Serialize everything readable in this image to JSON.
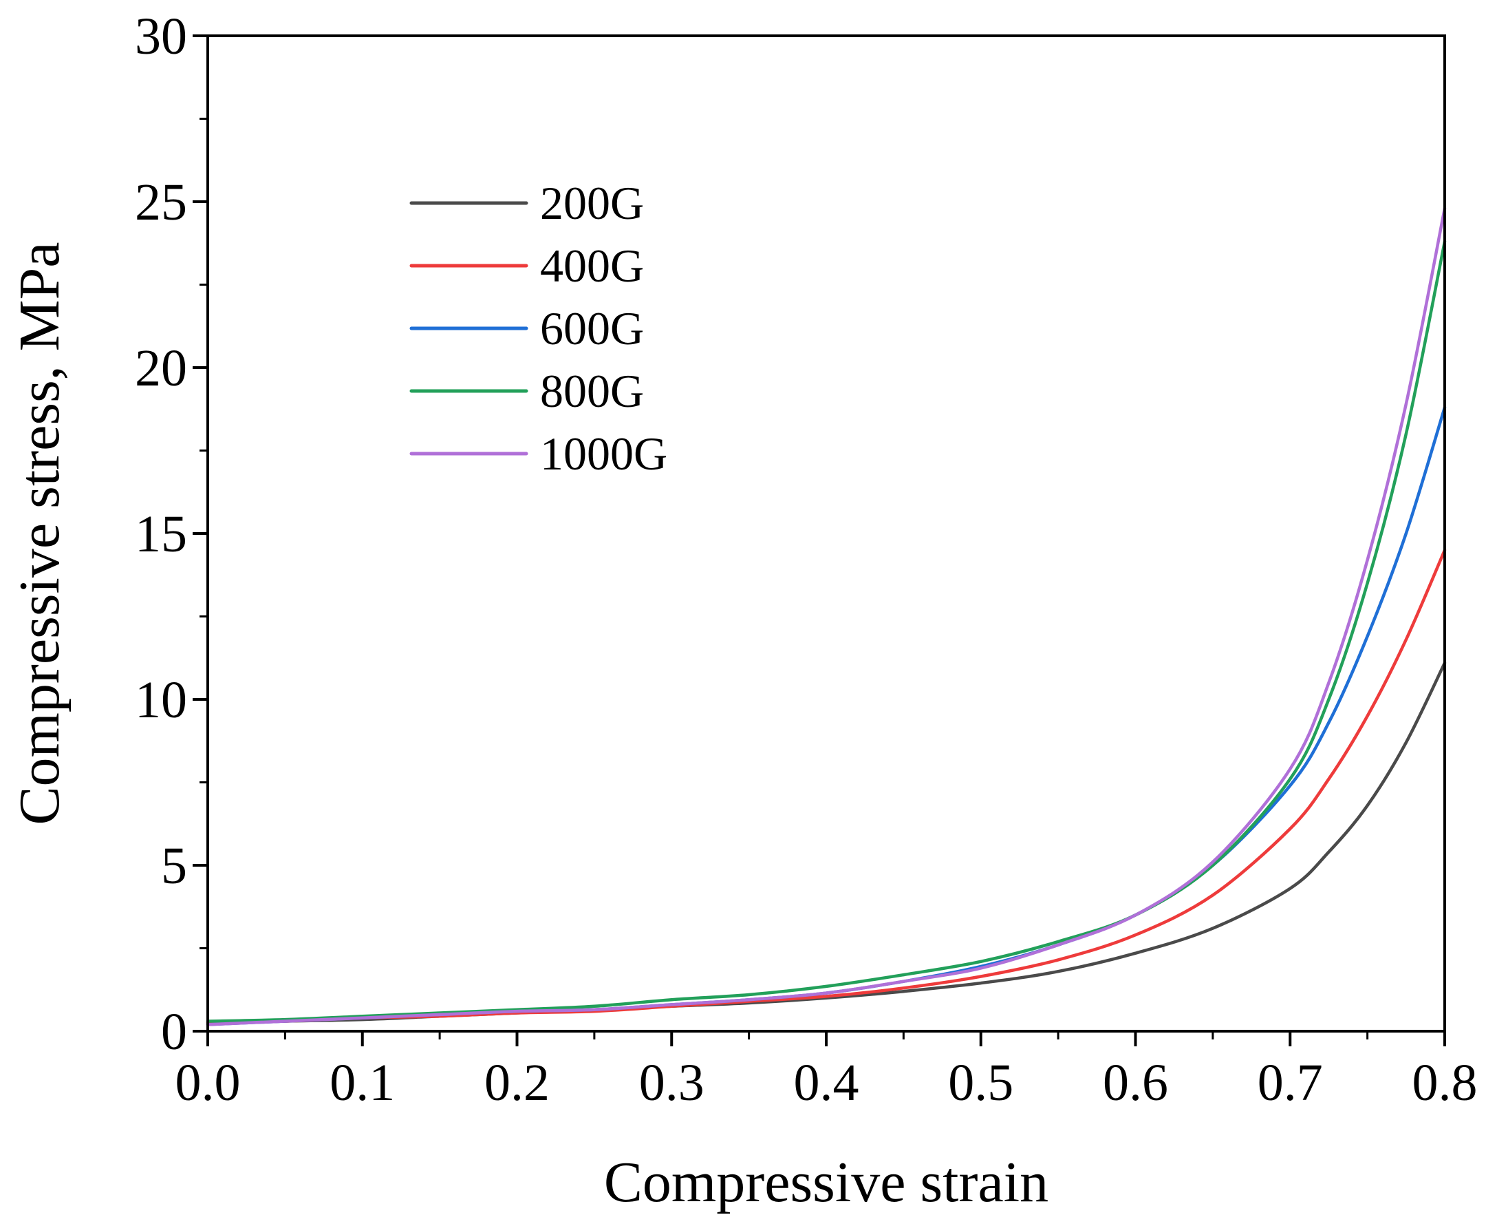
{
  "chart_data": {
    "type": "line",
    "title": "",
    "xlabel": "Compressive strain",
    "ylabel": "Compressive stress, MPa",
    "xlim": [
      0.0,
      0.8
    ],
    "ylim": [
      0,
      30
    ],
    "x_ticks": [
      0.0,
      0.1,
      0.2,
      0.3,
      0.4,
      0.5,
      0.6,
      0.7,
      0.8
    ],
    "x_tick_labels": [
      "0.0",
      "0.1",
      "0.2",
      "0.3",
      "0.4",
      "0.5",
      "0.6",
      "0.7",
      "0.8"
    ],
    "y_ticks": [
      0,
      5,
      10,
      15,
      20,
      25,
      30
    ],
    "y_tick_labels": [
      "0",
      "5",
      "10",
      "15",
      "20",
      "25",
      "30"
    ],
    "legend_position": "top-left",
    "grid": false,
    "x": [
      0.0,
      0.05,
      0.1,
      0.15,
      0.2,
      0.25,
      0.3,
      0.35,
      0.4,
      0.45,
      0.5,
      0.55,
      0.6,
      0.65,
      0.7,
      0.725,
      0.75,
      0.775,
      0.8
    ],
    "series": [
      {
        "name": "200G",
        "color": "#4a4a4a",
        "values": [
          0.25,
          0.3,
          0.35,
          0.45,
          0.55,
          0.65,
          0.75,
          0.85,
          1.0,
          1.2,
          1.45,
          1.8,
          2.35,
          3.1,
          4.3,
          5.4,
          6.8,
          8.7,
          11.1
        ]
      },
      {
        "name": "400G",
        "color": "#ee3b3b",
        "values": [
          0.25,
          0.3,
          0.4,
          0.45,
          0.55,
          0.6,
          0.75,
          0.9,
          1.05,
          1.3,
          1.65,
          2.15,
          2.9,
          4.1,
          6.1,
          7.6,
          9.5,
          11.8,
          14.5
        ]
      },
      {
        "name": "600G",
        "color": "#1f6fd6",
        "values": [
          0.2,
          0.3,
          0.4,
          0.5,
          0.6,
          0.65,
          0.8,
          0.95,
          1.15,
          1.5,
          1.95,
          2.6,
          3.5,
          5.0,
          7.4,
          9.3,
          11.9,
          15.0,
          18.8
        ]
      },
      {
        "name": "800G",
        "color": "#22a05a",
        "values": [
          0.3,
          0.35,
          0.45,
          0.55,
          0.65,
          0.75,
          0.95,
          1.1,
          1.35,
          1.7,
          2.1,
          2.7,
          3.5,
          5.0,
          7.6,
          10.0,
          13.5,
          18.0,
          23.8
        ]
      },
      {
        "name": "1000G",
        "color": "#b070d8",
        "values": [
          0.2,
          0.3,
          0.4,
          0.5,
          0.6,
          0.65,
          0.8,
          0.95,
          1.15,
          1.5,
          1.9,
          2.6,
          3.5,
          5.1,
          7.9,
          10.5,
          14.2,
          18.9,
          24.8
        ]
      }
    ]
  }
}
